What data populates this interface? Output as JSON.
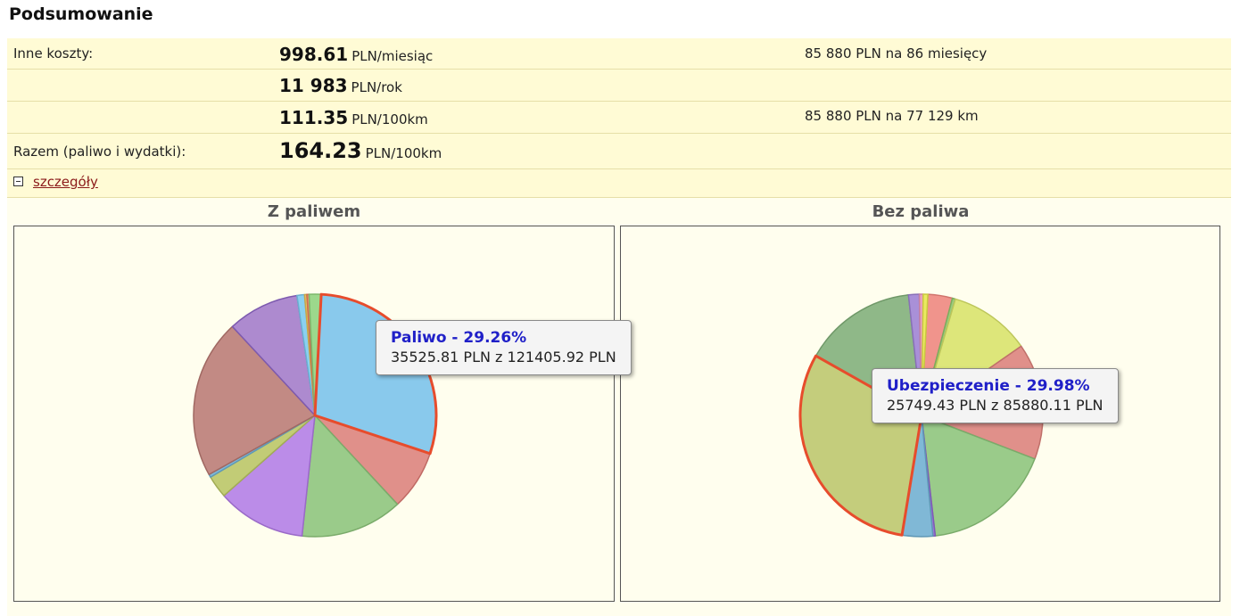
{
  "page": {
    "title": "Podsumowanie"
  },
  "summary": {
    "rows": [
      {
        "label": "Inne koszty:",
        "value": "998.61",
        "unit": "PLN/miesiąc",
        "extra": "85 880 PLN na 86 miesięcy"
      },
      {
        "label": "",
        "value": "11 983",
        "unit": "PLN/rok",
        "extra": ""
      },
      {
        "label": "",
        "value": "111.35",
        "unit": "PLN/100km",
        "extra": "85 880 PLN na 77 129 km"
      },
      {
        "label": "Razem (paliwo i wydatki):",
        "value": "164.23",
        "unit": "PLN/100km",
        "extra": ""
      }
    ],
    "details_link": "szczegóły"
  },
  "chart_data": [
    {
      "type": "pie",
      "title": "Z paliwem",
      "slices": [
        {
          "value": 29.26,
          "color": "#89c9ec",
          "border": "#e74c2c",
          "highlight": true
        },
        {
          "value": 8.0,
          "color": "#e0908a",
          "border": "#c06a64"
        },
        {
          "value": 13.6,
          "color": "#9acb8a",
          "border": "#7aab6a"
        },
        {
          "value": 11.8,
          "color": "#bb8ce8",
          "border": "#9a6ac8"
        },
        {
          "value": 3.0,
          "color": "#c2cc76",
          "border": "#a2ac56"
        },
        {
          "value": 0.4,
          "color": "#7fb9d8",
          "border": "#5f99b8"
        },
        {
          "value": 21.2,
          "color": "#c28a84",
          "border": "#a06862"
        },
        {
          "value": 9.54,
          "color": "#ad8acf",
          "border": "#7d5aaf"
        },
        {
          "value": 1.0,
          "color": "#8ad0f0",
          "border": "#6ab0d0"
        },
        {
          "value": 0.3,
          "color": "#e8c868",
          "border": "#c8a848"
        },
        {
          "value": 0.3,
          "color": "#e89070",
          "border": "#c87050"
        },
        {
          "value": 1.6,
          "color": "#9cd88c",
          "border": "#7cb86c"
        }
      ],
      "tooltip": {
        "title": "Paliwo - 29.26%",
        "text": "35525.81 PLN z 121405.92 PLN"
      }
    },
    {
      "type": "pie",
      "title": "Bez paliwa",
      "slices": [
        {
          "value": 3.2,
          "color": "#f0948c",
          "border": "#d0746c"
        },
        {
          "value": 0.4,
          "color": "#9ccc7c",
          "border": "#7cac5c"
        },
        {
          "value": 10.6,
          "color": "#dde67a",
          "border": "#bdc65a"
        },
        {
          "value": 15.2,
          "color": "#e0908a",
          "border": "#c0706a"
        },
        {
          "value": 17.0,
          "color": "#9acb8a",
          "border": "#7aab6a"
        },
        {
          "value": 0.3,
          "color": "#9e7ad8",
          "border": "#7e5ab8"
        },
        {
          "value": 4.0,
          "color": "#80b8d6",
          "border": "#5f98b6"
        },
        {
          "value": 29.98,
          "color": "#c4cd7c",
          "border": "#e74c2c",
          "highlight": true
        },
        {
          "value": 14.8,
          "color": "#8fb888",
          "border": "#6f9868"
        },
        {
          "value": 1.4,
          "color": "#a990d8",
          "border": "#8970b8"
        },
        {
          "value": 0.5,
          "color": "#e8a0c0",
          "border": "#c880a0"
        },
        {
          "value": 0.6,
          "color": "#eaea60",
          "border": "#caca40"
        }
      ],
      "tooltip": {
        "title": "Ubezpieczenie - 29.98%",
        "text": "25749.43 PLN z 85880.11 PLN"
      }
    }
  ]
}
